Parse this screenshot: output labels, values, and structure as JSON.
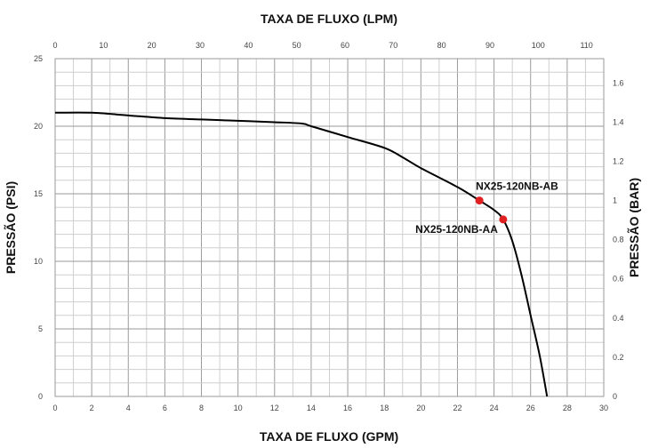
{
  "chart_data": {
    "type": "line",
    "title_top": "TAXA DE FLUXO (LPM)",
    "xlabel": "TAXA DE FLUXO (GPM)",
    "ylabel_left": "PRESSÃO (PSI)",
    "ylabel_right": "PRESSÃO (BAR)",
    "x_gpm_ticks": [
      "0",
      "2",
      "4",
      "6",
      "8",
      "10",
      "12",
      "14",
      "16",
      "18",
      "20",
      "22",
      "24",
      "26",
      "28",
      "30"
    ],
    "x_lpm_ticks": [
      "0",
      "10",
      "20",
      "30",
      "40",
      "50",
      "60",
      "70",
      "80",
      "90",
      "100",
      "110"
    ],
    "y_psi_ticks": [
      "0",
      "5",
      "10",
      "15",
      "20",
      "25"
    ],
    "y_bar_ticks": [
      "0",
      "0.2",
      "0.4",
      "0.6",
      "0.8",
      "1",
      "1.2",
      "1.4",
      "1.6"
    ],
    "xlim_gpm": [
      0,
      30
    ],
    "ylim_psi": [
      0,
      25
    ],
    "grid": true,
    "series": [
      {
        "x": [
          0,
          2,
          4,
          6,
          8,
          10,
          12,
          13.5,
          14,
          16,
          18,
          19,
          20,
          22,
          23.2,
          24,
          24.5,
          25,
          25.5,
          26,
          26.5,
          26.9
        ],
        "y": [
          21,
          21,
          20.8,
          20.6,
          20.5,
          20.4,
          20.3,
          20.2,
          20.0,
          19.2,
          18.4,
          17.7,
          16.9,
          15.5,
          14.5,
          13.8,
          13.1,
          11.5,
          9.0,
          6.0,
          3.0,
          0
        ],
        "color": "#000000"
      }
    ],
    "points": [
      {
        "label": "NX25-120NB-AB",
        "x": 23.2,
        "y": 14.5,
        "color": "#e02020"
      },
      {
        "label": "NX25-120NB-AA",
        "x": 24.5,
        "y": 13.1,
        "color": "#e02020"
      }
    ]
  }
}
